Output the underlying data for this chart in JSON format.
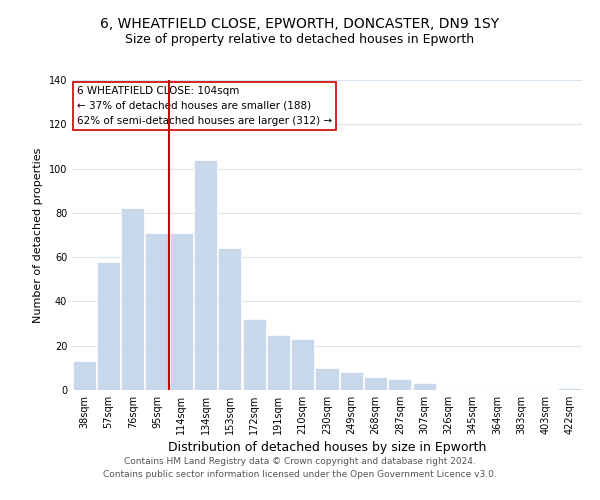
{
  "title": "6, WHEATFIELD CLOSE, EPWORTH, DONCASTER, DN9 1SY",
  "subtitle": "Size of property relative to detached houses in Epworth",
  "xlabel": "Distribution of detached houses by size in Epworth",
  "ylabel": "Number of detached properties",
  "bar_labels": [
    "38sqm",
    "57sqm",
    "76sqm",
    "95sqm",
    "114sqm",
    "134sqm",
    "153sqm",
    "172sqm",
    "191sqm",
    "210sqm",
    "230sqm",
    "249sqm",
    "268sqm",
    "287sqm",
    "307sqm",
    "326sqm",
    "345sqm",
    "364sqm",
    "383sqm",
    "403sqm",
    "422sqm"
  ],
  "bar_values": [
    13,
    58,
    82,
    71,
    71,
    104,
    64,
    32,
    25,
    23,
    10,
    8,
    6,
    5,
    3,
    0,
    0,
    0,
    0,
    0,
    1
  ],
  "bar_color": "#c8d8ea",
  "bar_edge_color": "#ffffff",
  "vline_x_index": 4,
  "vline_color": "#cc0000",
  "annotation_text": "6 WHEATFIELD CLOSE: 104sqm\n← 37% of detached houses are smaller (188)\n62% of semi-detached houses are larger (312) →",
  "annotation_box_color": "#ffffff",
  "annotation_box_edge_color": "#cc0000",
  "ylim": [
    0,
    140
  ],
  "yticks": [
    0,
    20,
    40,
    60,
    80,
    100,
    120,
    140
  ],
  "footer_line1": "Contains HM Land Registry data © Crown copyright and database right 2024.",
  "footer_line2": "Contains public sector information licensed under the Open Government Licence v3.0.",
  "background_color": "#ffffff",
  "grid_color": "#d8e4ee",
  "title_fontsize": 10,
  "subtitle_fontsize": 9,
  "xlabel_fontsize": 9,
  "ylabel_fontsize": 8,
  "tick_fontsize": 7,
  "annotation_fontsize": 7.5,
  "footer_fontsize": 6.5
}
